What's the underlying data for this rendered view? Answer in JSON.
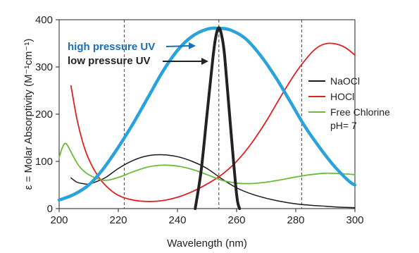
{
  "chart_data": {
    "type": "line",
    "title": "",
    "xlabel": "Wavelength (nm)",
    "ylabel": "ε = Molar Absorptivity (M⁻¹cm⁻¹)",
    "xlim": [
      200,
      300
    ],
    "ylim": [
      0,
      400
    ],
    "xticks": [
      200,
      220,
      240,
      260,
      280,
      300
    ],
    "yticks": [
      0,
      100,
      200,
      300,
      400
    ],
    "reference_lines_x": [
      222,
      254,
      282
    ],
    "grid": false,
    "legend_position": "right",
    "legend": [
      "NaOCl",
      "HOCl",
      "Free Chlorine",
      "pH= 7"
    ],
    "annotations": [
      {
        "text": "high pressure UV",
        "color": "#1a6fb5"
      },
      {
        "text": "low pressure UV",
        "color": "#222222"
      }
    ],
    "series": [
      {
        "name": "NaOCl",
        "color": "#1a1a1a",
        "x": [
          204,
          206,
          208,
          210,
          213,
          216,
          220,
          225,
          230,
          235,
          240,
          245,
          250,
          255,
          260,
          265,
          270,
          275,
          280,
          285,
          290,
          295,
          300
        ],
        "y": [
          65,
          56,
          53,
          52,
          58,
          67,
          85,
          102,
          112,
          114,
          110,
          100,
          85,
          63,
          44,
          31,
          22,
          15,
          10,
          7,
          5,
          3,
          2
        ]
      },
      {
        "name": "HOCl",
        "color": "#e02020",
        "x": [
          204,
          206,
          208,
          210,
          213,
          216,
          220,
          225,
          230,
          235,
          240,
          245,
          250,
          255,
          260,
          265,
          270,
          275,
          280,
          285,
          288,
          291,
          294,
          297,
          300
        ],
        "y": [
          260,
          190,
          140,
          105,
          70,
          47,
          28,
          18,
          15,
          17,
          24,
          36,
          52,
          72,
          100,
          138,
          185,
          238,
          288,
          328,
          344,
          350,
          348,
          340,
          325
        ]
      },
      {
        "name": "Free Chlorine pH= 7",
        "color": "#6cbb3c",
        "x": [
          200,
          201,
          202,
          203,
          205,
          207,
          210,
          215,
          220,
          225,
          230,
          235,
          240,
          245,
          250,
          255,
          260,
          265,
          270,
          275,
          280,
          285,
          290,
          295,
          300
        ],
        "y": [
          108,
          128,
          138,
          132,
          108,
          88,
          72,
          60,
          66,
          78,
          88,
          92,
          90,
          83,
          72,
          60,
          54,
          53,
          56,
          61,
          67,
          72,
          75,
          74,
          72
        ]
      },
      {
        "name": "high pressure UV",
        "color": "#2aa3dd",
        "x": [
          200,
          205,
          210,
          215,
          220,
          225,
          230,
          235,
          240,
          245,
          250,
          254,
          258,
          263,
          268,
          273,
          278,
          283,
          288,
          293,
          298,
          300
        ],
        "y": [
          18,
          30,
          50,
          85,
          130,
          180,
          235,
          290,
          335,
          365,
          380,
          382,
          378,
          360,
          325,
          280,
          228,
          175,
          130,
          90,
          58,
          50
        ]
      },
      {
        "name": "low pressure UV",
        "color": "#222222",
        "x": [
          246,
          248,
          250,
          252,
          253,
          254,
          255,
          256,
          258,
          260,
          261
        ],
        "y": [
          0,
          80,
          200,
          320,
          365,
          383,
          365,
          320,
          170,
          30,
          0
        ]
      }
    ]
  }
}
